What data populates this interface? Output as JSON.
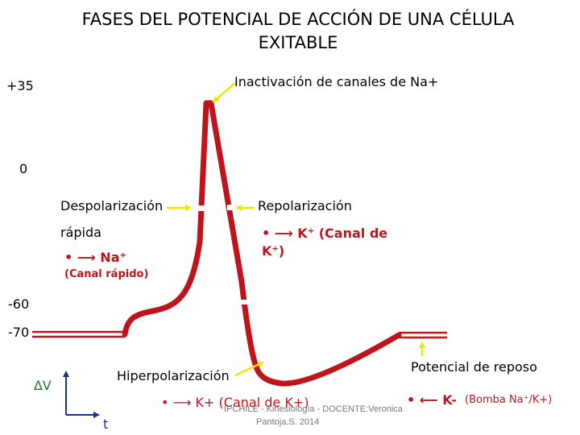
{
  "title": {
    "line1": "FASES DEL POTENCIAL DE ACCIÓN DE UNA CÉLULA",
    "line2": "EXITABLE"
  },
  "axis_labels": {
    "plus35": "+35",
    "zero": "0",
    "minus60": "-60",
    "minus70": "-70",
    "delta_v": "∆V",
    "time": "t"
  },
  "labels": {
    "inactivation": "Inactivación de canales de Na+",
    "depolarization": "Despolarización",
    "fast": "rápida",
    "na_bullet": "• ⟶ Na⁺",
    "fast_channel": "(Canal rápido)",
    "repolarization": "Repolarización",
    "k_bullet_1": "• ⟶ K⁺ (Canal de",
    "k_bullet_2": "K⁺)",
    "hyperpolarization": "Hiperpolarización",
    "hyper_bullet": "• ⟶ K+ (Canal de K+)",
    "resting": "Potencial de reposo",
    "pump_bullet": "• ⟵ K-",
    "pump_text": "(Bomba Na⁺/K+)"
  },
  "footer": {
    "line1": "IPCHILE - Kinesiología - DOCENTE:Veronica",
    "line2": "Pantoja.S. 2014"
  },
  "colors": {
    "curve": "#c0141c",
    "arrow_yellow": "#f2e600",
    "axis_blue": "#1c2e9c"
  }
}
